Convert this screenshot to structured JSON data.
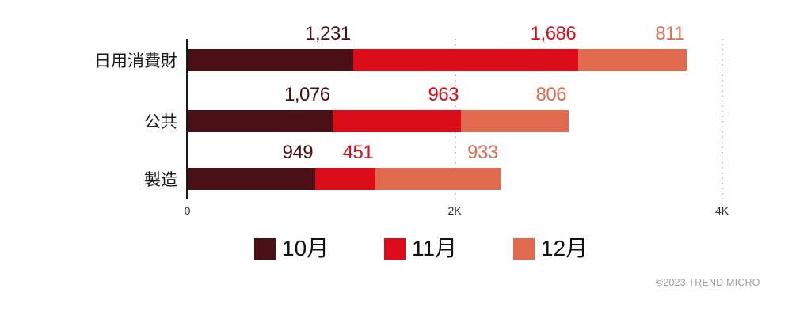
{
  "chart_data": {
    "type": "bar",
    "orientation": "horizontal",
    "stacked": true,
    "categories": [
      "日用消費財",
      "公共",
      "製造"
    ],
    "series": [
      {
        "name": "10月",
        "color": "#4a1016",
        "values": [
          1231,
          1076,
          949
        ]
      },
      {
        "name": "11月",
        "color": "#da0c19",
        "values": [
          1686,
          963,
          451
        ]
      },
      {
        "name": "12月",
        "color": "#e06a4e",
        "values": [
          811,
          806,
          933
        ]
      }
    ],
    "totals": [
      3728,
      2845,
      2333
    ],
    "xlim": [
      0,
      4000
    ],
    "x_ticks": [
      {
        "label": "0",
        "value": 0
      },
      {
        "label": "2K",
        "value": 2000
      },
      {
        "label": "4K",
        "value": 4000
      }
    ],
    "gridlines_at": [
      2000,
      4000
    ],
    "grid_style": "dotted",
    "legend_position": "bottom",
    "value_label_format": "thousands-comma",
    "axis_color": "#1a1a1a",
    "gridline_color": "#bfbfbf"
  },
  "footer": {
    "copyright": "©2023 TREND MICRO"
  }
}
